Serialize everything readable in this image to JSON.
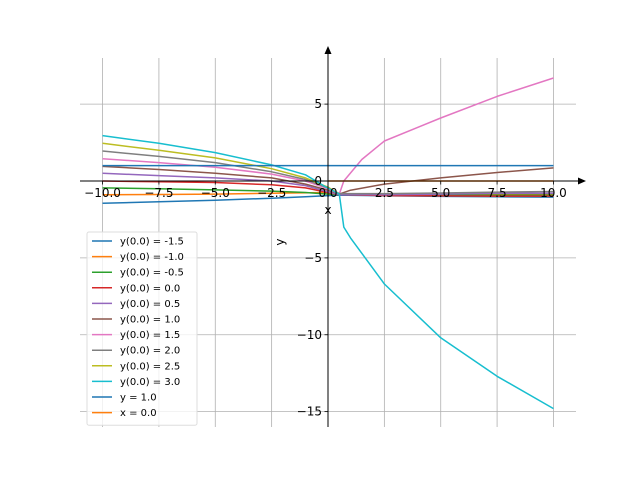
{
  "chart_data": {
    "type": "line",
    "xlabel": "x",
    "ylabel": "y",
    "xlim": [
      -11,
      11
    ],
    "ylim": [
      -16,
      8
    ],
    "grid": true,
    "legend_position": "lower-left",
    "xticks": [
      {
        "value": -10.0,
        "label": "−10.0"
      },
      {
        "value": -7.5,
        "label": "−7.5"
      },
      {
        "value": -5.0,
        "label": "−5.0"
      },
      {
        "value": -2.5,
        "label": "−2.5"
      },
      {
        "value": 0.0,
        "label": "0.0"
      },
      {
        "value": 2.5,
        "label": "2.5"
      },
      {
        "value": 5.0,
        "label": "5.0"
      },
      {
        "value": 7.5,
        "label": "7.5"
      },
      {
        "value": 10.0,
        "label": "10.0"
      }
    ],
    "yticks": [
      {
        "value": 5,
        "label": "5"
      },
      {
        "value": 0,
        "label": "0"
      },
      {
        "value": -5,
        "label": "−5"
      },
      {
        "value": -10,
        "label": "−10"
      },
      {
        "value": -15,
        "label": "−15"
      }
    ],
    "series": [
      {
        "name": "y(0.0) = -1.5",
        "color": "#1f77b4",
        "segments": [
          [
            [
              -10,
              -1.45
            ],
            [
              -7.5,
              -1.35
            ],
            [
              -5,
              -1.25
            ],
            [
              -2.5,
              -1.12
            ],
            [
              -1,
              -1.02
            ],
            [
              0,
              -0.95
            ],
            [
              0.5,
              -0.92
            ],
            [
              2.5,
              -0.96
            ],
            [
              5,
              -1.0
            ],
            [
              7.5,
              -1.03
            ],
            [
              10,
              -1.05
            ]
          ]
        ]
      },
      {
        "name": "y(0.0) = -1.0",
        "color": "#ff7f0e",
        "segments": [
          [
            [
              -10,
              -0.9
            ],
            [
              -7.5,
              -0.88
            ],
            [
              -5,
              -0.85
            ],
            [
              -2.5,
              -0.8
            ],
            [
              0,
              -0.75
            ],
            [
              0.5,
              -0.9
            ],
            [
              2.5,
              -0.9
            ],
            [
              5,
              -0.9
            ],
            [
              7.5,
              -0.9
            ],
            [
              10,
              -0.9
            ]
          ]
        ]
      },
      {
        "name": "y(0.0) = -0.5",
        "color": "#2ca02c",
        "segments": [
          [
            [
              -10,
              -0.45
            ],
            [
              -7.5,
              -0.5
            ],
            [
              -5,
              -0.58
            ],
            [
              -2.5,
              -0.66
            ],
            [
              -1,
              -0.75
            ],
            [
              0,
              -0.85
            ],
            [
              0.5,
              -0.9
            ],
            [
              2.5,
              -0.92
            ],
            [
              5,
              -0.92
            ],
            [
              7.5,
              -0.92
            ],
            [
              10,
              -0.92
            ]
          ]
        ]
      },
      {
        "name": "y(0.0) = 0.0",
        "color": "#d62728",
        "segments": [
          [
            [
              -10,
              0.0
            ],
            [
              -7.5,
              -0.05
            ],
            [
              -5,
              -0.1
            ],
            [
              -2.5,
              -0.25
            ],
            [
              -1,
              -0.45
            ],
            [
              0,
              -0.75
            ],
            [
              0.5,
              -0.9
            ],
            [
              2.5,
              -0.95
            ],
            [
              5,
              -0.97
            ],
            [
              7.5,
              -0.98
            ],
            [
              10,
              -0.98
            ]
          ]
        ]
      },
      {
        "name": "y(0.0) = 0.5",
        "color": "#9467bd",
        "segments": [
          [
            [
              -10,
              0.5
            ],
            [
              -7.5,
              0.35
            ],
            [
              -5,
              0.2
            ],
            [
              -2.5,
              0.0
            ],
            [
              -1,
              -0.3
            ],
            [
              0,
              -0.7
            ],
            [
              0.5,
              -0.9
            ],
            [
              2.5,
              -0.9
            ],
            [
              5,
              -0.85
            ],
            [
              7.5,
              -0.8
            ],
            [
              10,
              -0.8
            ]
          ]
        ]
      },
      {
        "name": "y(0.0) = 1.0",
        "color": "#8c564b",
        "segments": [
          [
            [
              -10,
              0.95
            ],
            [
              -7.5,
              0.75
            ],
            [
              -5,
              0.5
            ],
            [
              -2.5,
              0.2
            ],
            [
              -1,
              -0.2
            ],
            [
              0,
              -0.6
            ],
            [
              0.5,
              -0.85
            ],
            [
              1,
              -0.6
            ],
            [
              2.5,
              -0.2
            ],
            [
              5,
              0.2
            ],
            [
              7.5,
              0.55
            ],
            [
              10,
              0.85
            ]
          ]
        ]
      },
      {
        "name": "y(0.0) = 1.5",
        "color": "#e377c2",
        "segments": [
          [
            [
              -10,
              1.45
            ],
            [
              -7.5,
              1.2
            ],
            [
              -5,
              0.9
            ],
            [
              -2.5,
              0.45
            ],
            [
              -1,
              0.0
            ],
            [
              0,
              -0.5
            ],
            [
              0.5,
              -0.85
            ]
          ],
          [
            [
              0.5,
              -0.85
            ],
            [
              0.7,
              0.0
            ],
            [
              1.5,
              1.4
            ],
            [
              2.5,
              2.6
            ],
            [
              5,
              4.1
            ],
            [
              7.5,
              5.5
            ],
            [
              10,
              6.7
            ]
          ]
        ]
      },
      {
        "name": "y(0.0) = 2.0",
        "color": "#7f7f7f",
        "segments": [
          [
            [
              -10,
              1.95
            ],
            [
              -7.5,
              1.6
            ],
            [
              -5,
              1.2
            ],
            [
              -2.5,
              0.6
            ],
            [
              -1,
              0.1
            ],
            [
              0,
              -0.45
            ],
            [
              0.5,
              -0.82
            ],
            [
              2.5,
              -0.82
            ],
            [
              5,
              -0.78
            ],
            [
              7.5,
              -0.72
            ],
            [
              10,
              -0.68
            ]
          ]
        ]
      },
      {
        "name": "y(0.0) = 2.5",
        "color": "#bcbd22",
        "segments": [
          [
            [
              -10,
              2.45
            ],
            [
              -7.5,
              2.0
            ],
            [
              -5,
              1.5
            ],
            [
              -2.5,
              0.8
            ],
            [
              -1,
              0.2
            ],
            [
              0,
              -0.4
            ],
            [
              0.5,
              -0.85
            ]
          ]
        ]
      },
      {
        "name": "y(0.0) = 3.0",
        "color": "#17becf",
        "segments": [
          [
            [
              -10,
              2.95
            ],
            [
              -7.5,
              2.45
            ],
            [
              -5,
              1.85
            ],
            [
              -2.5,
              1.05
            ],
            [
              -1,
              0.4
            ],
            [
              -0.2,
              -0.3
            ],
            [
              0.5,
              -0.85
            ]
          ],
          [
            [
              0.5,
              -0.85
            ],
            [
              0.7,
              -3.0
            ],
            [
              1,
              -3.7
            ],
            [
              2.5,
              -6.7
            ],
            [
              5,
              -10.2
            ],
            [
              7.5,
              -12.7
            ],
            [
              10,
              -14.8
            ]
          ]
        ]
      },
      {
        "name": "y = 1.0",
        "color": "#1f77b4",
        "segments": [
          [
            [
              -10,
              1.0
            ],
            [
              10,
              1.0
            ]
          ]
        ]
      },
      {
        "name": "x = 0.0",
        "color": "#ff7f0e",
        "segments": [
          [
            [
              0,
              0
            ],
            [
              10,
              0
            ]
          ]
        ]
      }
    ]
  }
}
